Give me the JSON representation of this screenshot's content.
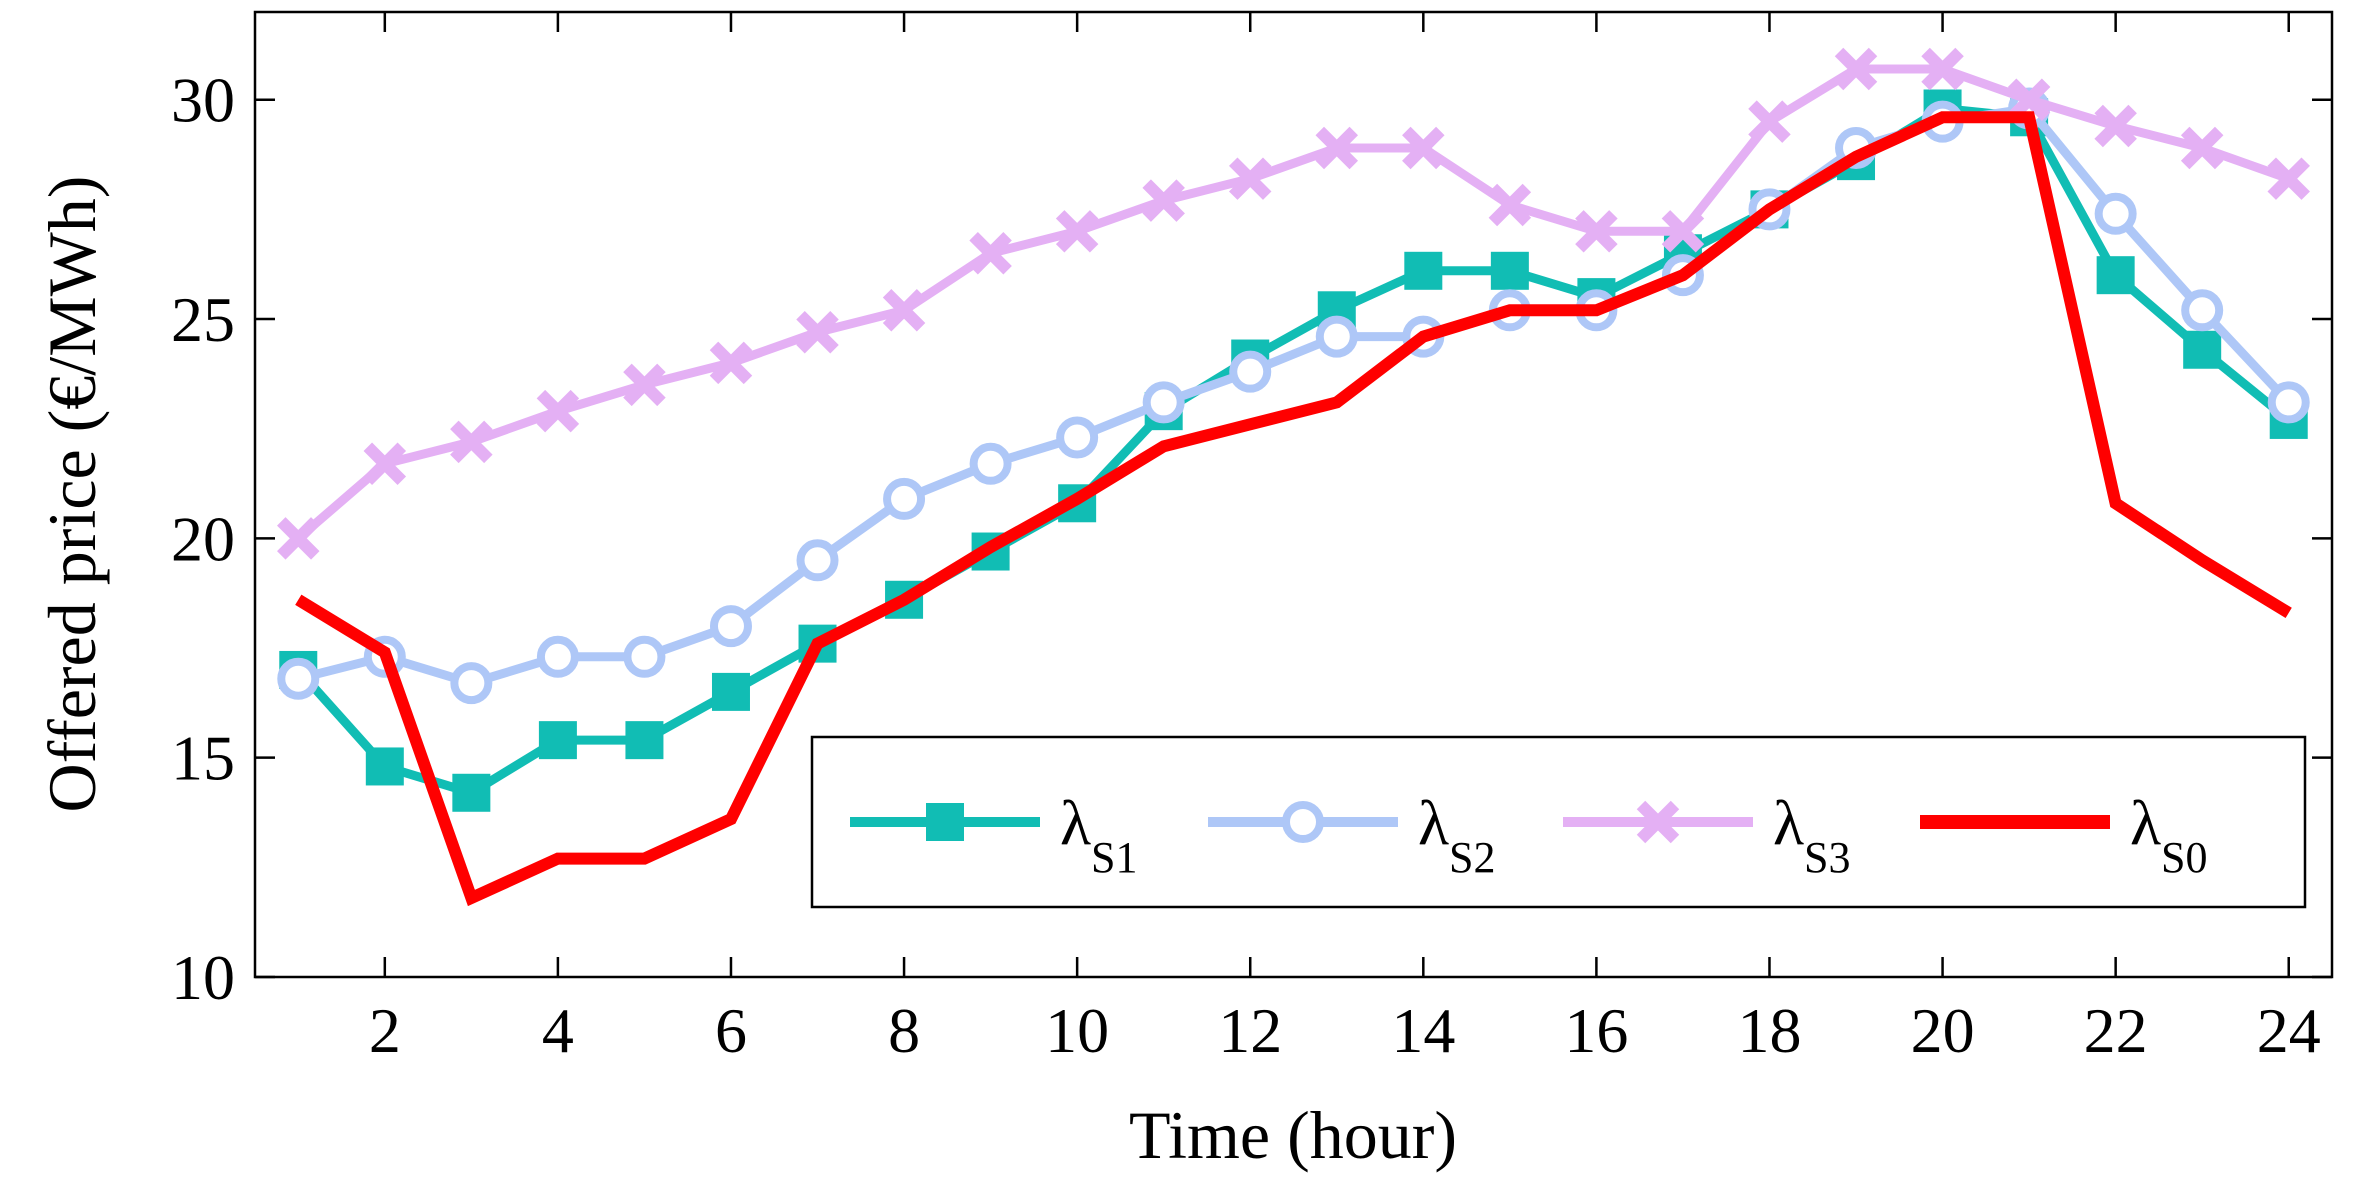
{
  "chart_data": {
    "type": "line",
    "title": "",
    "xlabel": "Time (hour)",
    "ylabel": "Offered price (€/MWh)",
    "xlim": [
      0.5,
      24.5
    ],
    "ylim": [
      10,
      32
    ],
    "xticks": [
      2,
      4,
      6,
      8,
      10,
      12,
      14,
      16,
      18,
      20,
      22,
      24
    ],
    "xtick_labels": [
      "2",
      "4",
      "6",
      "8",
      "10",
      "12",
      "14",
      "16",
      "18",
      "20",
      "22",
      "24"
    ],
    "yticks": [
      10,
      15,
      20,
      25,
      30
    ],
    "ytick_labels": [
      "10",
      "15",
      "20",
      "25",
      "30"
    ],
    "grid": false,
    "legend_position": "bottom-right",
    "x": [
      1,
      2,
      3,
      4,
      5,
      6,
      7,
      8,
      9,
      10,
      11,
      12,
      13,
      14,
      15,
      16,
      17,
      18,
      19,
      20,
      21,
      22,
      23,
      24
    ],
    "series": [
      {
        "name": "λS1",
        "legend_main": "λ",
        "legend_sub": "S1",
        "color": "#11bdb4",
        "marker": "square",
        "values": [
          17.0,
          14.8,
          14.2,
          15.4,
          15.4,
          16.5,
          17.6,
          18.6,
          19.7,
          20.8,
          22.9,
          24.1,
          25.2,
          26.1,
          26.1,
          25.5,
          26.5,
          27.5,
          28.6,
          29.8,
          29.6,
          26.0,
          24.3,
          22.7
        ]
      },
      {
        "name": "λS2",
        "legend_main": "λ",
        "legend_sub": "S2",
        "color": "#aec7f7",
        "marker": "circle",
        "values": [
          16.8,
          17.3,
          16.7,
          17.3,
          17.3,
          18.0,
          19.5,
          20.9,
          21.7,
          22.3,
          23.1,
          23.8,
          24.6,
          24.6,
          25.2,
          25.2,
          26.0,
          27.5,
          28.9,
          29.5,
          29.8,
          27.4,
          25.2,
          23.1
        ]
      },
      {
        "name": "λS3",
        "legend_main": "λ",
        "legend_sub": "S3",
        "color": "#e4b0f4",
        "marker": "x",
        "values": [
          20.0,
          21.7,
          22.2,
          22.9,
          23.5,
          24.0,
          24.7,
          25.2,
          26.5,
          27.0,
          27.7,
          28.2,
          28.9,
          28.9,
          27.6,
          27.0,
          27.0,
          29.5,
          30.7,
          30.7,
          30.0,
          29.4,
          28.9,
          28.2
        ]
      },
      {
        "name": "λS0",
        "legend_main": "λ",
        "legend_sub": "S0",
        "color": "#ff0000",
        "marker": "none",
        "values": [
          18.6,
          17.4,
          11.8,
          12.7,
          12.7,
          13.6,
          17.6,
          18.6,
          19.8,
          20.9,
          22.1,
          22.6,
          23.1,
          24.6,
          25.2,
          25.2,
          26.0,
          27.5,
          28.7,
          29.6,
          29.6,
          20.8,
          19.5,
          18.3
        ]
      }
    ]
  }
}
